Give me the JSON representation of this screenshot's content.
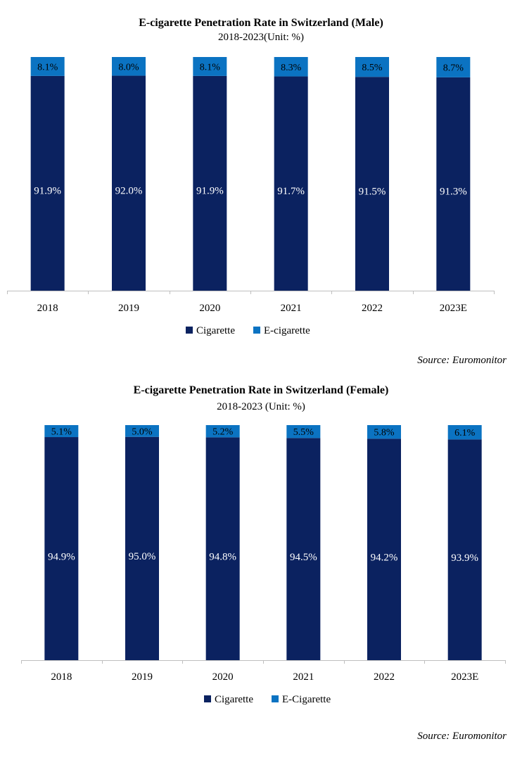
{
  "colors": {
    "cigarette": "#0B2260",
    "ecigarette": "#0B73C2",
    "axis": "#BFBFBF",
    "label_on_dark": "#FFFFFF",
    "label_on_light": "#000000"
  },
  "chart_data": [
    {
      "type": "bar",
      "stacked": true,
      "title": "E-cigarette Penetration Rate in Switzerland (Male)",
      "subtitle": "2018-2023(Unit: %)",
      "categories": [
        "2018",
        "2019",
        "2020",
        "2021",
        "2022",
        "2023E"
      ],
      "series": [
        {
          "name": "Cigarette",
          "values": [
            91.9,
            92.0,
            91.9,
            91.7,
            91.5,
            91.3
          ],
          "labels": [
            "91.9%",
            "92.0%",
            "91.9%",
            "91.7%",
            "91.5%",
            "91.3%"
          ]
        },
        {
          "name": "E-cigarette",
          "values": [
            8.1,
            8.0,
            8.1,
            8.3,
            8.5,
            8.7
          ],
          "labels": [
            "8.1%",
            "8.0%",
            "8.1%",
            "8.3%",
            "8.5%",
            "8.7%"
          ]
        }
      ],
      "ylim": [
        0,
        100
      ],
      "legend": "bottom-center",
      "source": "Source: Euromonitor"
    },
    {
      "type": "bar",
      "stacked": true,
      "title": "E-cigarette Penetration Rate in Switzerland (Female)",
      "subtitle": "2018-2023 (Unit: %)",
      "categories": [
        "2018",
        "2019",
        "2020",
        "2021",
        "2022",
        "2023E"
      ],
      "series": [
        {
          "name": "Cigarette",
          "values": [
            94.9,
            95.0,
            94.8,
            94.5,
            94.2,
            93.9
          ],
          "labels": [
            "94.9%",
            "95.0%",
            "94.8%",
            "94.5%",
            "94.2%",
            "93.9%"
          ]
        },
        {
          "name": "E-Cigarette",
          "values": [
            5.1,
            5.0,
            5.2,
            5.5,
            5.8,
            6.1
          ],
          "labels": [
            "5.1%",
            "5.0%",
            "5.2%",
            "5.5%",
            "5.8%",
            "6.1%"
          ]
        }
      ],
      "ylim": [
        0,
        100
      ],
      "legend": "bottom-center",
      "source": "Source: Euromonitor"
    }
  ]
}
